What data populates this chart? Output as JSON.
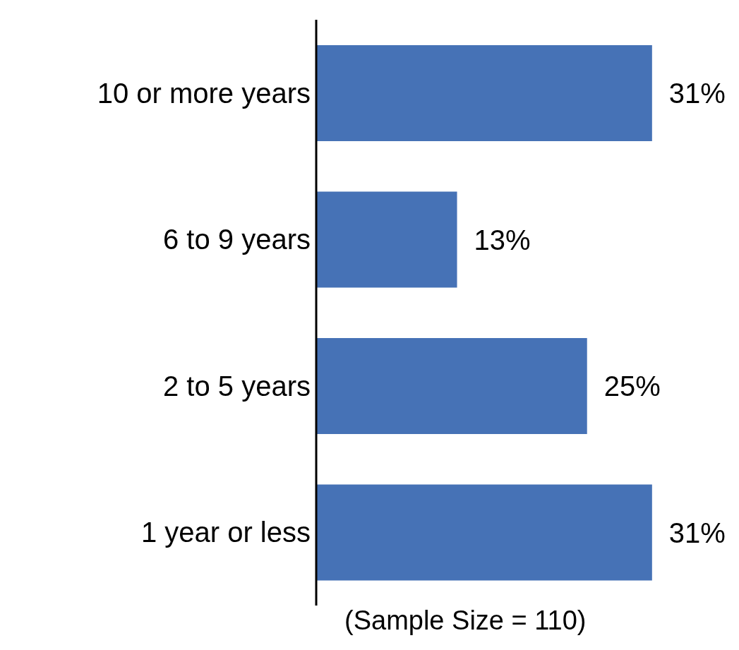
{
  "chart_data": {
    "type": "bar",
    "orientation": "horizontal",
    "categories": [
      "10 or more years",
      "6 to 9 years",
      "2 to 5 years",
      "1 year or less"
    ],
    "values": [
      31,
      13,
      25,
      31
    ],
    "value_labels": [
      "31%",
      "13%",
      "25%",
      "31%"
    ],
    "color": "#4672b6",
    "annotations": [
      "(Sample Size = 110)"
    ]
  }
}
